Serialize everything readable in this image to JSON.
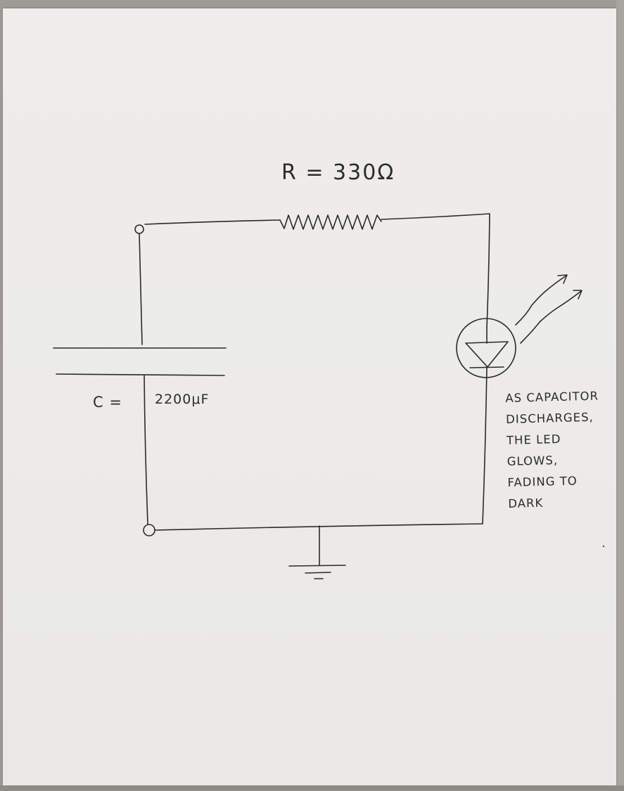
{
  "diagram": {
    "resistor_label": "R = 330Ω",
    "capacitor_symbol": "C =",
    "capacitor_value": "2200μF",
    "note_lines": [
      "AS CAPACITOR",
      "DISCHARGES,",
      "THE LED",
      "GLOWS,",
      "FADING TO",
      "DARK"
    ],
    "ink_color": "#2a2a2a",
    "paper_color": "#eeedeb"
  }
}
